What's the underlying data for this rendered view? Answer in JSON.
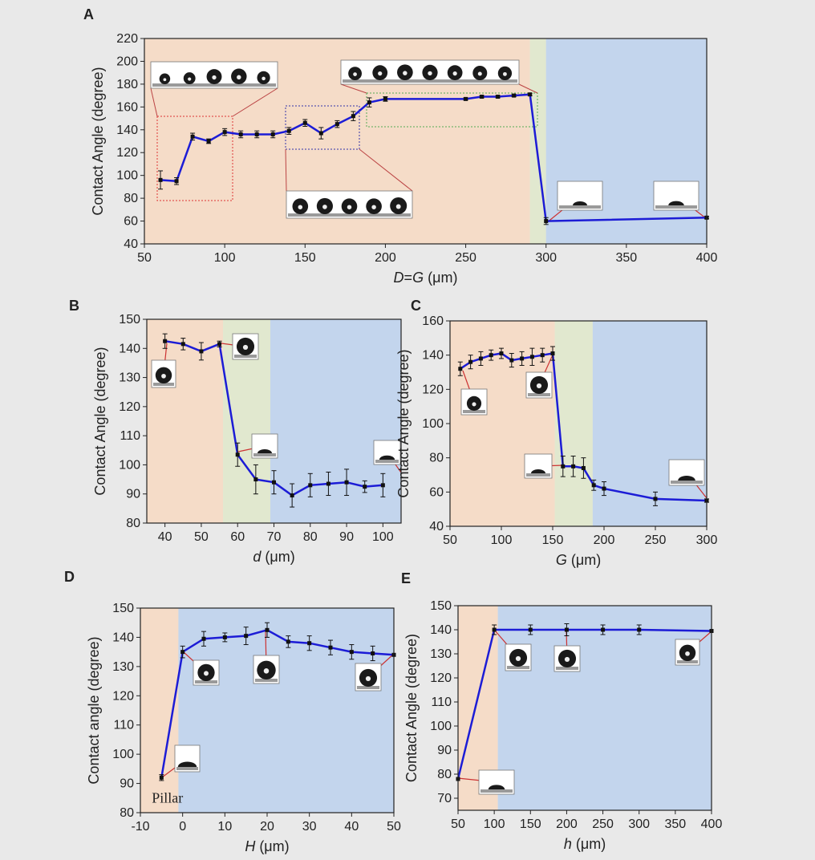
{
  "chart_data": [
    {
      "panel": "A",
      "type": "line",
      "ylabel": "Contact Angle (degree)",
      "xlabel_parts": [
        {
          "t": "D",
          "i": true
        },
        {
          "t": "=",
          "i": false
        },
        {
          "t": "G",
          "i": true
        },
        {
          "t": " (μm)",
          "i": false
        }
      ],
      "xlim": [
        50,
        400
      ],
      "ylim": [
        40,
        220
      ],
      "xticks": [
        50,
        100,
        150,
        200,
        250,
        300,
        350,
        400
      ],
      "yticks": [
        40,
        60,
        80,
        100,
        120,
        140,
        160,
        180,
        200,
        220
      ],
      "regions": [
        {
          "from": 50,
          "to": 290,
          "color": "#f5dcc8"
        },
        {
          "from": 290,
          "to": 300,
          "color": "#e1e8cf"
        },
        {
          "from": 300,
          "to": 400,
          "color": "#c3d5ed"
        }
      ],
      "series": [
        {
          "x": [
            60,
            70,
            80,
            90,
            100,
            110,
            120,
            130,
            140,
            150,
            160,
            170,
            180,
            190,
            200,
            250,
            260,
            270,
            280,
            290,
            300,
            400
          ],
          "y": [
            96,
            95,
            134,
            130,
            138,
            136,
            136,
            136,
            139,
            146,
            137,
            145,
            152,
            164,
            167,
            167,
            169,
            169,
            170,
            171,
            60,
            63
          ],
          "err": [
            8,
            3,
            3,
            2,
            3,
            3,
            3,
            3,
            3,
            3,
            5,
            3,
            4,
            4,
            2,
            1,
            1,
            1,
            1,
            1,
            3,
            1
          ]
        }
      ]
    },
    {
      "panel": "B",
      "type": "line",
      "ylabel": "Contact Angle (degree)",
      "xlabel_parts": [
        {
          "t": "d",
          "i": true
        },
        {
          "t": " (μm)",
          "i": false
        }
      ],
      "xlim": [
        35,
        105
      ],
      "ylim": [
        80,
        150
      ],
      "xticks": [
        40,
        50,
        60,
        70,
        80,
        90,
        100
      ],
      "yticks": [
        80,
        90,
        100,
        110,
        120,
        130,
        140,
        150
      ],
      "regions": [
        {
          "from": 35,
          "to": 56,
          "color": "#f5dcc8"
        },
        {
          "from": 56,
          "to": 69,
          "color": "#e1e8cf"
        },
        {
          "from": 69,
          "to": 105,
          "color": "#c3d5ed"
        }
      ],
      "series": [
        {
          "x": [
            40,
            45,
            50,
            55,
            60,
            65,
            70,
            75,
            80,
            85,
            90,
            95,
            100
          ],
          "y": [
            142.5,
            141.5,
            139,
            141.5,
            103.5,
            95,
            94,
            89.5,
            93,
            93.5,
            94,
            92.5,
            93
          ],
          "err": [
            2.5,
            2,
            3,
            1,
            4,
            5,
            4,
            4,
            4,
            4,
            4.5,
            2,
            4
          ]
        }
      ]
    },
    {
      "panel": "C",
      "type": "line",
      "ylabel": "Contact Angle (degree)",
      "xlabel_parts": [
        {
          "t": "G",
          "i": true
        },
        {
          "t": " (μm)",
          "i": false
        }
      ],
      "xlim": [
        50,
        300
      ],
      "ylim": [
        40,
        160
      ],
      "xticks": [
        50,
        100,
        150,
        200,
        250,
        300
      ],
      "yticks": [
        40,
        60,
        80,
        100,
        120,
        140,
        160
      ],
      "regions": [
        {
          "from": 50,
          "to": 152,
          "color": "#f5dcc8"
        },
        {
          "from": 152,
          "to": 189,
          "color": "#e1e8cf"
        },
        {
          "from": 189,
          "to": 300,
          "color": "#c3d5ed"
        }
      ],
      "series": [
        {
          "x": [
            60,
            70,
            80,
            90,
            100,
            110,
            120,
            130,
            140,
            150,
            160,
            170,
            180,
            190,
            200,
            250,
            300
          ],
          "y": [
            132,
            136,
            138,
            140,
            141,
            137,
            138,
            139,
            140,
            141,
            75,
            75,
            74,
            64,
            62,
            56,
            55
          ],
          "err": [
            4,
            4,
            4,
            3,
            3,
            4,
            4,
            5,
            4,
            4,
            6,
            6,
            6,
            3,
            4,
            4,
            1
          ]
        }
      ]
    },
    {
      "panel": "D",
      "type": "line",
      "ylabel": "Contact angle (degree)",
      "xlabel_parts": [
        {
          "t": "H",
          "i": true
        },
        {
          "t": " (μm)",
          "i": false
        }
      ],
      "xlim": [
        -10,
        50
      ],
      "ylim": [
        80,
        150
      ],
      "xticks": [
        -10,
        0,
        10,
        20,
        30,
        40,
        50
      ],
      "yticks": [
        80,
        90,
        100,
        110,
        120,
        130,
        140,
        150
      ],
      "regions": [
        {
          "from": -10,
          "to": -1,
          "color": "#f5dcc8"
        },
        {
          "from": -1,
          "to": 50,
          "color": "#c3d5ed"
        }
      ],
      "annotation": "Pillar",
      "series": [
        {
          "x": [
            -5,
            0,
            5,
            10,
            15,
            20,
            25,
            30,
            35,
            40,
            45,
            50
          ],
          "y": [
            92,
            135,
            139.5,
            140,
            140.5,
            142.5,
            138.5,
            138,
            136.5,
            135,
            134.5,
            134
          ],
          "err": [
            1,
            2,
            2.5,
            1.5,
            3,
            2.5,
            2,
            2.5,
            2.5,
            2.5,
            2.5,
            0
          ]
        }
      ]
    },
    {
      "panel": "E",
      "type": "line",
      "ylabel": "Contact Angle (degree)",
      "xlabel_parts": [
        {
          "t": "h",
          "i": true
        },
        {
          "t": " (μm)",
          "i": false
        }
      ],
      "xlim": [
        50,
        400
      ],
      "ylim": [
        65,
        150
      ],
      "xticks": [
        50,
        100,
        150,
        200,
        250,
        300,
        350,
        400
      ],
      "yticks": [
        70,
        80,
        90,
        100,
        110,
        120,
        130,
        140,
        150
      ],
      "regions": [
        {
          "from": 50,
          "to": 105,
          "color": "#f5dcc8"
        },
        {
          "from": 105,
          "to": 400,
          "color": "#c3d5ed"
        }
      ],
      "series": [
        {
          "x": [
            50,
            100,
            150,
            200,
            250,
            300,
            400
          ],
          "y": [
            78,
            140,
            140,
            140,
            140,
            140,
            139.5
          ],
          "err": [
            0,
            2,
            2,
            2.5,
            2,
            2,
            0
          ]
        }
      ]
    }
  ]
}
